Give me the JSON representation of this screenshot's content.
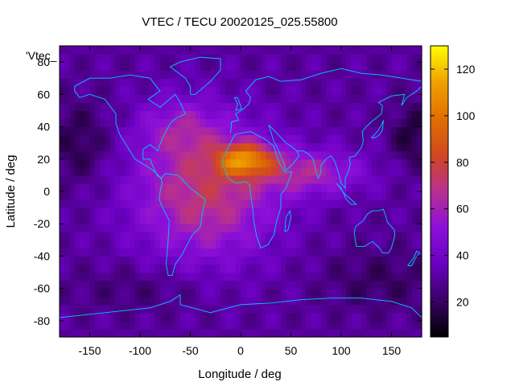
{
  "chart_data": {
    "type": "heatmap",
    "title": "VTEC / TECU 20020125_025.55800",
    "xlabel": "Longitude / deg",
    "ylabel": "Latitude / deg",
    "xlim": [
      -180,
      180
    ],
    "ylim": [
      -90,
      90
    ],
    "x_ticks": [
      -150,
      -100,
      -50,
      0,
      50,
      100,
      150
    ],
    "y_ticks": [
      -80,
      -60,
      -40,
      -20,
      0,
      20,
      40,
      60,
      80
    ],
    "legend_label": "'Vtec_",
    "colorbar": {
      "range": [
        5,
        130
      ],
      "ticks": [
        20,
        40,
        60,
        80,
        100,
        120
      ],
      "palette": [
        "#000000",
        "#3a0066",
        "#6a00c0",
        "#8c10d8",
        "#b83090",
        "#d04820",
        "#e07000",
        "#f0a000",
        "#ffff00"
      ]
    },
    "features": {
      "peak_region": "Africa / Atlantic, approx lon -20..20, lat 10..30",
      "peak_value": 125,
      "coastlines": true
    }
  }
}
